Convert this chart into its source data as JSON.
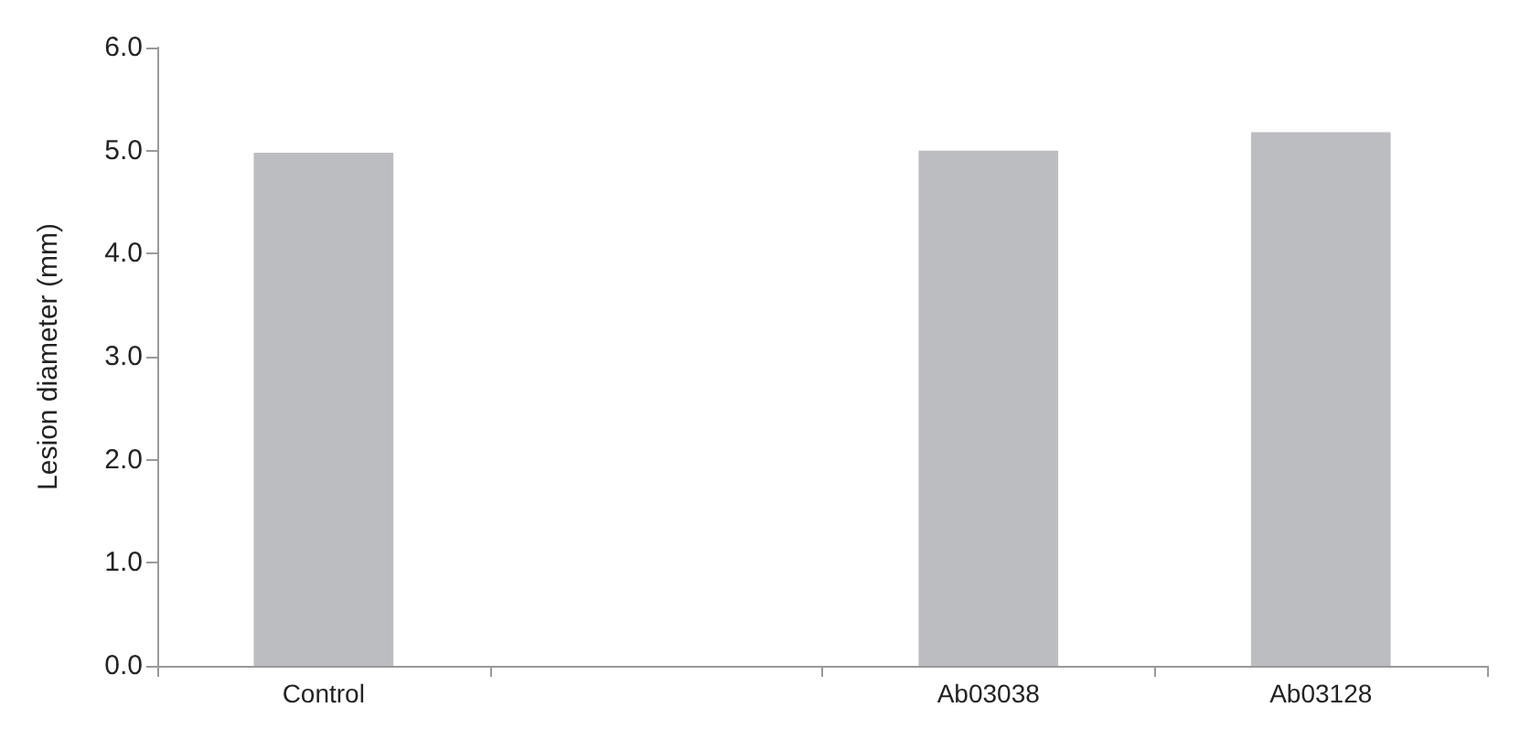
{
  "chart_data": {
    "type": "bar",
    "ylabel": "Lesion diameter (mm)",
    "categories": [
      "Control",
      null,
      "Ab03038",
      "Ab03128"
    ],
    "values": [
      4.98,
      0,
      5.0,
      5.18
    ],
    "color": "#bcbdc1",
    "ylim": [
      0,
      6
    ],
    "yticks": [
      {
        "value": 0,
        "label": "0.0"
      },
      {
        "value": 1,
        "label": "1.0"
      },
      {
        "value": 2,
        "label": "2.0"
      },
      {
        "value": 3,
        "label": "3.0"
      },
      {
        "value": 4,
        "label": "4.0"
      },
      {
        "value": 5,
        "label": "5.0"
      },
      {
        "value": 6,
        "label": "6.0"
      }
    ],
    "grid": false
  }
}
